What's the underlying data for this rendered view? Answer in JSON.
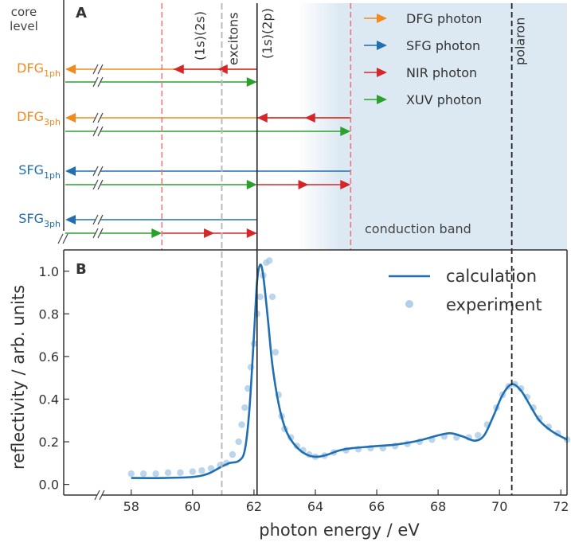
{
  "colors": {
    "dfg": "#f28a1e",
    "sfg": "#1f6fb2",
    "nir": "#d62728",
    "xuv": "#2ca02c",
    "calc": "#1f6fb2",
    "exp": "#9ec3e6",
    "band": "#dce8f2",
    "guide_red": "#e87a7a",
    "guide_gray": "#bbbbbb"
  },
  "panel_a": {
    "letter": "A",
    "core_level": [
      "core",
      "level"
    ],
    "excitons": "excitons",
    "exciton_1s2s": "(1s)(2s)",
    "exciton_1s2p": "(1s)(2p)",
    "polaron": "polaron",
    "conduction_band": "conduction band",
    "rows": [
      {
        "base": "DFG",
        "sub": "1ph",
        "color": "dfg"
      },
      {
        "base": "DFG",
        "sub": "3ph",
        "color": "dfg"
      },
      {
        "base": "SFG",
        "sub": "1ph",
        "color": "sfg"
      },
      {
        "base": "SFG",
        "sub": "3ph",
        "color": "sfg"
      }
    ],
    "legend": [
      {
        "label": "DFG photon",
        "color": "dfg"
      },
      {
        "label": "SFG photon",
        "color": "sfg"
      },
      {
        "label": "NIR photon",
        "color": "nir"
      },
      {
        "label": "XUV photon",
        "color": "xuv"
      }
    ],
    "guides_eV": {
      "red1": 59.0,
      "gray": 60.95,
      "black": 62.1,
      "red2": 65.15,
      "polaron": 70.4,
      "band_start": 64.2
    }
  },
  "chart_data": {
    "type": "line",
    "panel": "B",
    "xlabel": "photon energy / eV",
    "ylabel": "reflectivity / arb. units",
    "xlim": [
      55.8,
      72.2
    ],
    "ylim": [
      -0.05,
      1.1
    ],
    "xticks": [
      58,
      60,
      62,
      64,
      66,
      68,
      70,
      72
    ],
    "yticks": [
      0.0,
      0.2,
      0.4,
      0.6,
      0.8,
      1.0
    ],
    "legend_position": "top-right",
    "series": [
      {
        "name": "calculation",
        "style": "line",
        "x": [
          58.0,
          59.0,
          60.0,
          60.5,
          60.9,
          61.2,
          61.5,
          61.7,
          61.85,
          62.0,
          62.1,
          62.2,
          62.3,
          62.45,
          62.6,
          62.8,
          63.0,
          63.2,
          63.5,
          63.8,
          64.1,
          64.4,
          64.8,
          65.2,
          65.6,
          66.0,
          66.5,
          67.0,
          67.5,
          68.0,
          68.4,
          68.8,
          69.2,
          69.5,
          69.8,
          70.1,
          70.4,
          70.7,
          71.0,
          71.3,
          71.7,
          72.2
        ],
        "y": [
          0.03,
          0.03,
          0.035,
          0.05,
          0.08,
          0.1,
          0.11,
          0.16,
          0.35,
          0.7,
          0.95,
          1.03,
          0.98,
          0.78,
          0.56,
          0.38,
          0.27,
          0.21,
          0.16,
          0.135,
          0.13,
          0.14,
          0.16,
          0.17,
          0.175,
          0.18,
          0.185,
          0.195,
          0.21,
          0.23,
          0.24,
          0.225,
          0.205,
          0.23,
          0.32,
          0.42,
          0.47,
          0.44,
          0.37,
          0.3,
          0.25,
          0.21
        ]
      },
      {
        "name": "experiment",
        "style": "markers",
        "x": [
          58.0,
          58.4,
          58.8,
          59.2,
          59.6,
          60.0,
          60.3,
          60.6,
          60.9,
          61.1,
          61.3,
          61.5,
          61.6,
          61.7,
          61.8,
          61.9,
          62.0,
          62.1,
          62.2,
          62.3,
          62.4,
          62.5,
          62.6,
          62.7,
          62.8,
          62.9,
          63.0,
          63.2,
          63.4,
          63.6,
          63.8,
          64.0,
          64.3,
          64.6,
          65.0,
          65.4,
          65.8,
          66.2,
          66.6,
          67.0,
          67.4,
          67.8,
          68.2,
          68.6,
          69.0,
          69.3,
          69.6,
          69.9,
          70.1,
          70.3,
          70.5,
          70.7,
          70.9,
          71.1,
          71.3,
          71.6,
          71.9,
          72.2
        ],
        "y": [
          0.05,
          0.05,
          0.05,
          0.055,
          0.055,
          0.06,
          0.065,
          0.075,
          0.09,
          0.1,
          0.14,
          0.2,
          0.28,
          0.36,
          0.45,
          0.55,
          0.66,
          0.8,
          0.88,
          0.98,
          1.04,
          1.05,
          0.88,
          0.62,
          0.42,
          0.32,
          0.26,
          0.22,
          0.18,
          0.16,
          0.14,
          0.13,
          0.135,
          0.15,
          0.16,
          0.165,
          0.17,
          0.17,
          0.18,
          0.19,
          0.2,
          0.21,
          0.225,
          0.22,
          0.22,
          0.23,
          0.28,
          0.36,
          0.42,
          0.46,
          0.47,
          0.45,
          0.41,
          0.36,
          0.31,
          0.27,
          0.24,
          0.21
        ]
      }
    ]
  }
}
